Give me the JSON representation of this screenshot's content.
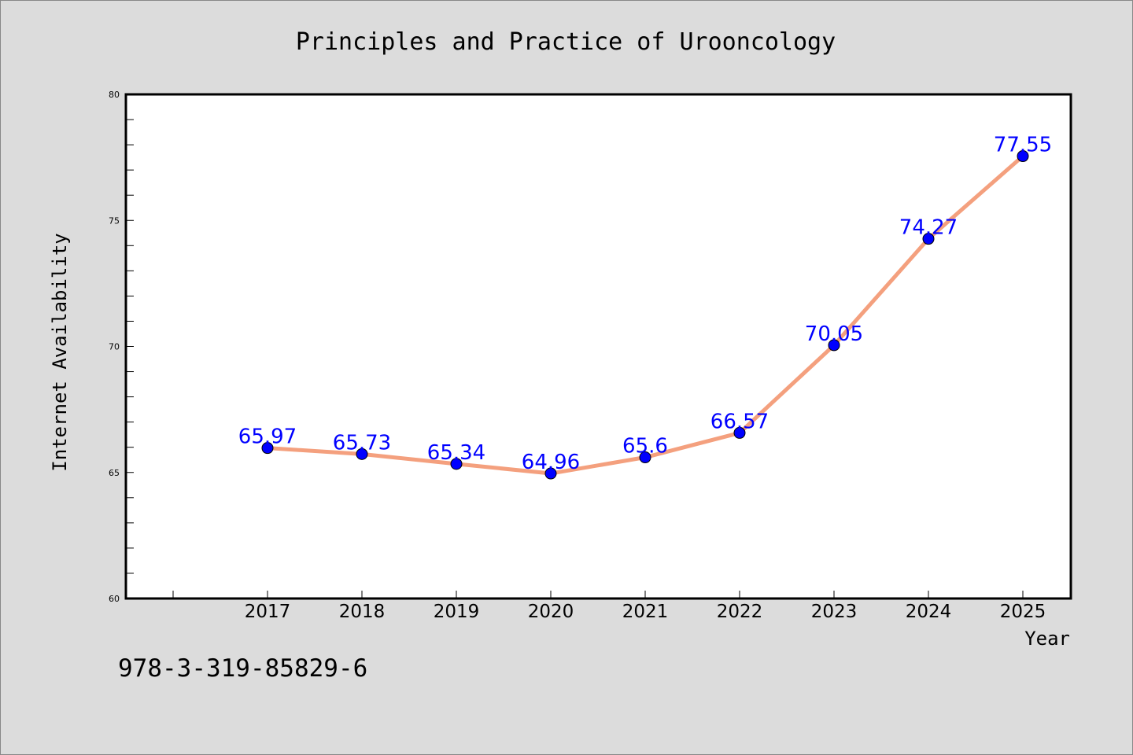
{
  "colors": {
    "background": "#dcdcdc",
    "plot_background": "#ffffff",
    "line": "#f4a07e",
    "marker": "#0000ff",
    "data_label": "#0000ff"
  },
  "footer": {
    "isbn": "978-3-319-85829-6"
  },
  "chart_data": {
    "type": "line",
    "title": "Principles and Practice of Urooncology",
    "xlabel": "Year",
    "ylabel": "Internet Availability",
    "categories": [
      "2017",
      "2018",
      "2019",
      "2020",
      "2021",
      "2022",
      "2023",
      "2024",
      "2025"
    ],
    "series": [
      {
        "values": [
          65.97,
          65.73,
          65.34,
          64.96,
          65.6,
          66.57,
          70.05,
          74.27,
          77.55
        ],
        "labels": [
          "65.97",
          "65.73",
          "65.34",
          "64.96",
          "65.6",
          "66.57",
          "70.05",
          "74.27",
          "77.55"
        ]
      }
    ],
    "ylim": [
      60,
      80
    ],
    "yticks": [
      "60",
      "65",
      "70",
      "75",
      "80"
    ],
    "grid": false,
    "legend": "none"
  }
}
